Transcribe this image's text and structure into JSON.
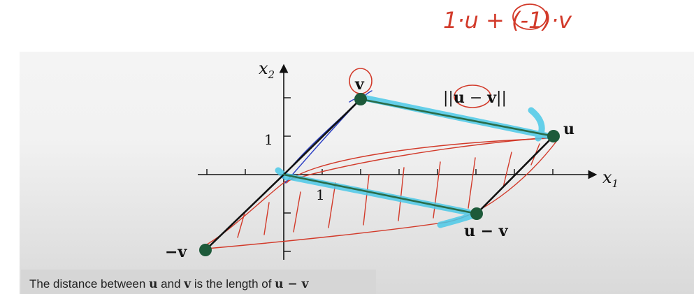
{
  "handwriting": {
    "formula": "1·u + (-1)·v"
  },
  "diagram": {
    "axis_x_label": "x",
    "axis_x_sub": "1",
    "axis_y_label": "x",
    "axis_y_sub": "2",
    "tick_x_label": "1",
    "tick_y_label": "1",
    "points": {
      "v": {
        "label": "v",
        "x": 2,
        "y": 2
      },
      "u": {
        "label": "u",
        "x": 7,
        "y": 1
      },
      "neg_v": {
        "label": "−v",
        "x": -2,
        "y": -2
      },
      "u_minus_v": {
        "label": "u − v",
        "x": 5,
        "y": -1
      }
    },
    "norm_label": {
      "open": "||",
      "u": "u",
      "minus": " − ",
      "v": "v",
      "close": "||"
    }
  },
  "caption": {
    "pre": "The distance between ",
    "u": "u",
    "mid1": " and ",
    "v": "v",
    "mid2": " is the length of ",
    "expr": "u − v"
  },
  "colors": {
    "vector": "#111111",
    "point": "#1d5a3a",
    "highlight": "#4cc9e8",
    "ink_red": "#d23a2a",
    "ink_blue": "#2b3fc4",
    "segment_green": "#2a8a55"
  }
}
